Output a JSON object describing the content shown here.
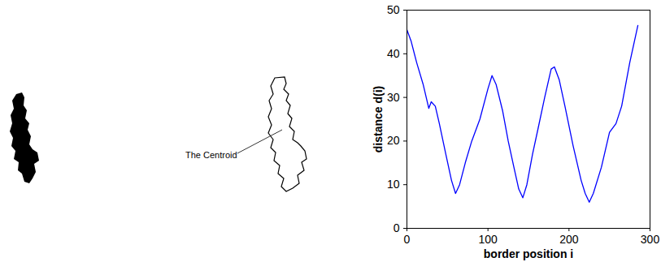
{
  "chart_data": {
    "type": "line",
    "x_label": "border position i",
    "y_label": "distance d(i)",
    "annotations": [
      "The Centroid"
    ],
    "x": [
      0,
      5,
      12,
      20,
      27,
      30,
      35,
      40,
      48,
      55,
      60,
      65,
      72,
      80,
      90,
      100,
      105,
      110,
      118,
      125,
      132,
      138,
      143,
      148,
      155,
      162,
      170,
      178,
      182,
      188,
      195,
      205,
      215,
      220,
      225,
      230,
      240,
      250,
      258,
      265,
      275,
      285
    ],
    "values": [
      45.5,
      43,
      38,
      33,
      27.5,
      29,
      28,
      24,
      17,
      11,
      8,
      10,
      15,
      20,
      25,
      32,
      35,
      33,
      27,
      20,
      14,
      9,
      7,
      10,
      17,
      23,
      30,
      36.5,
      37,
      34,
      28,
      19,
      11,
      8,
      6,
      8,
      14,
      22,
      24,
      28,
      38,
      46.5
    ],
    "color": "#0000ff",
    "xlim": [
      0,
      300
    ],
    "xticks": [
      0,
      100,
      200,
      300
    ],
    "ylim": [
      0,
      50
    ],
    "yticks": [
      0,
      10,
      20,
      30,
      40,
      50
    ],
    "grid": false
  }
}
